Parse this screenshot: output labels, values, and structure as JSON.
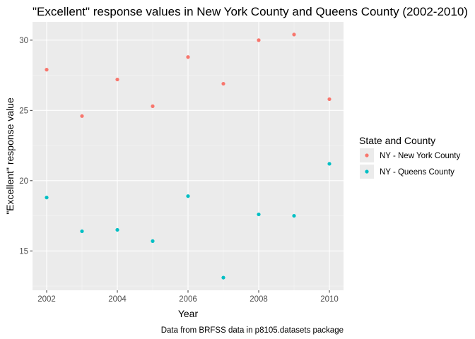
{
  "chart_data": {
    "type": "scatter",
    "title": "\"Excellent\" response values in New York County and Queens County (2002-2010)",
    "xlabel": "Year",
    "ylabel": "\"Excellent\" response value",
    "caption": "Data from BRFSS data in p8105.datasets package",
    "xlim": [
      2001.6,
      2010.4
    ],
    "ylim": [
      12.2,
      31.3
    ],
    "x_ticks": [
      2002,
      2004,
      2006,
      2008,
      2010
    ],
    "y_ticks": [
      15,
      20,
      25,
      30
    ],
    "grid": true,
    "legend": {
      "title": "State and County",
      "placement": "right"
    },
    "series": [
      {
        "name": "NY - New York County",
        "color": "#F8766D",
        "x": [
          2002,
          2003,
          2004,
          2005,
          2006,
          2007,
          2008,
          2009,
          2010
        ],
        "y": [
          27.9,
          24.6,
          27.2,
          25.3,
          28.8,
          26.9,
          30.0,
          30.4,
          25.8
        ]
      },
      {
        "name": "NY - Queens County",
        "color": "#00BFC4",
        "x": [
          2002,
          2003,
          2004,
          2005,
          2006,
          2007,
          2008,
          2009,
          2010
        ],
        "y": [
          18.8,
          16.4,
          16.5,
          15.7,
          18.9,
          13.1,
          17.6,
          17.5,
          21.2
        ]
      }
    ]
  }
}
